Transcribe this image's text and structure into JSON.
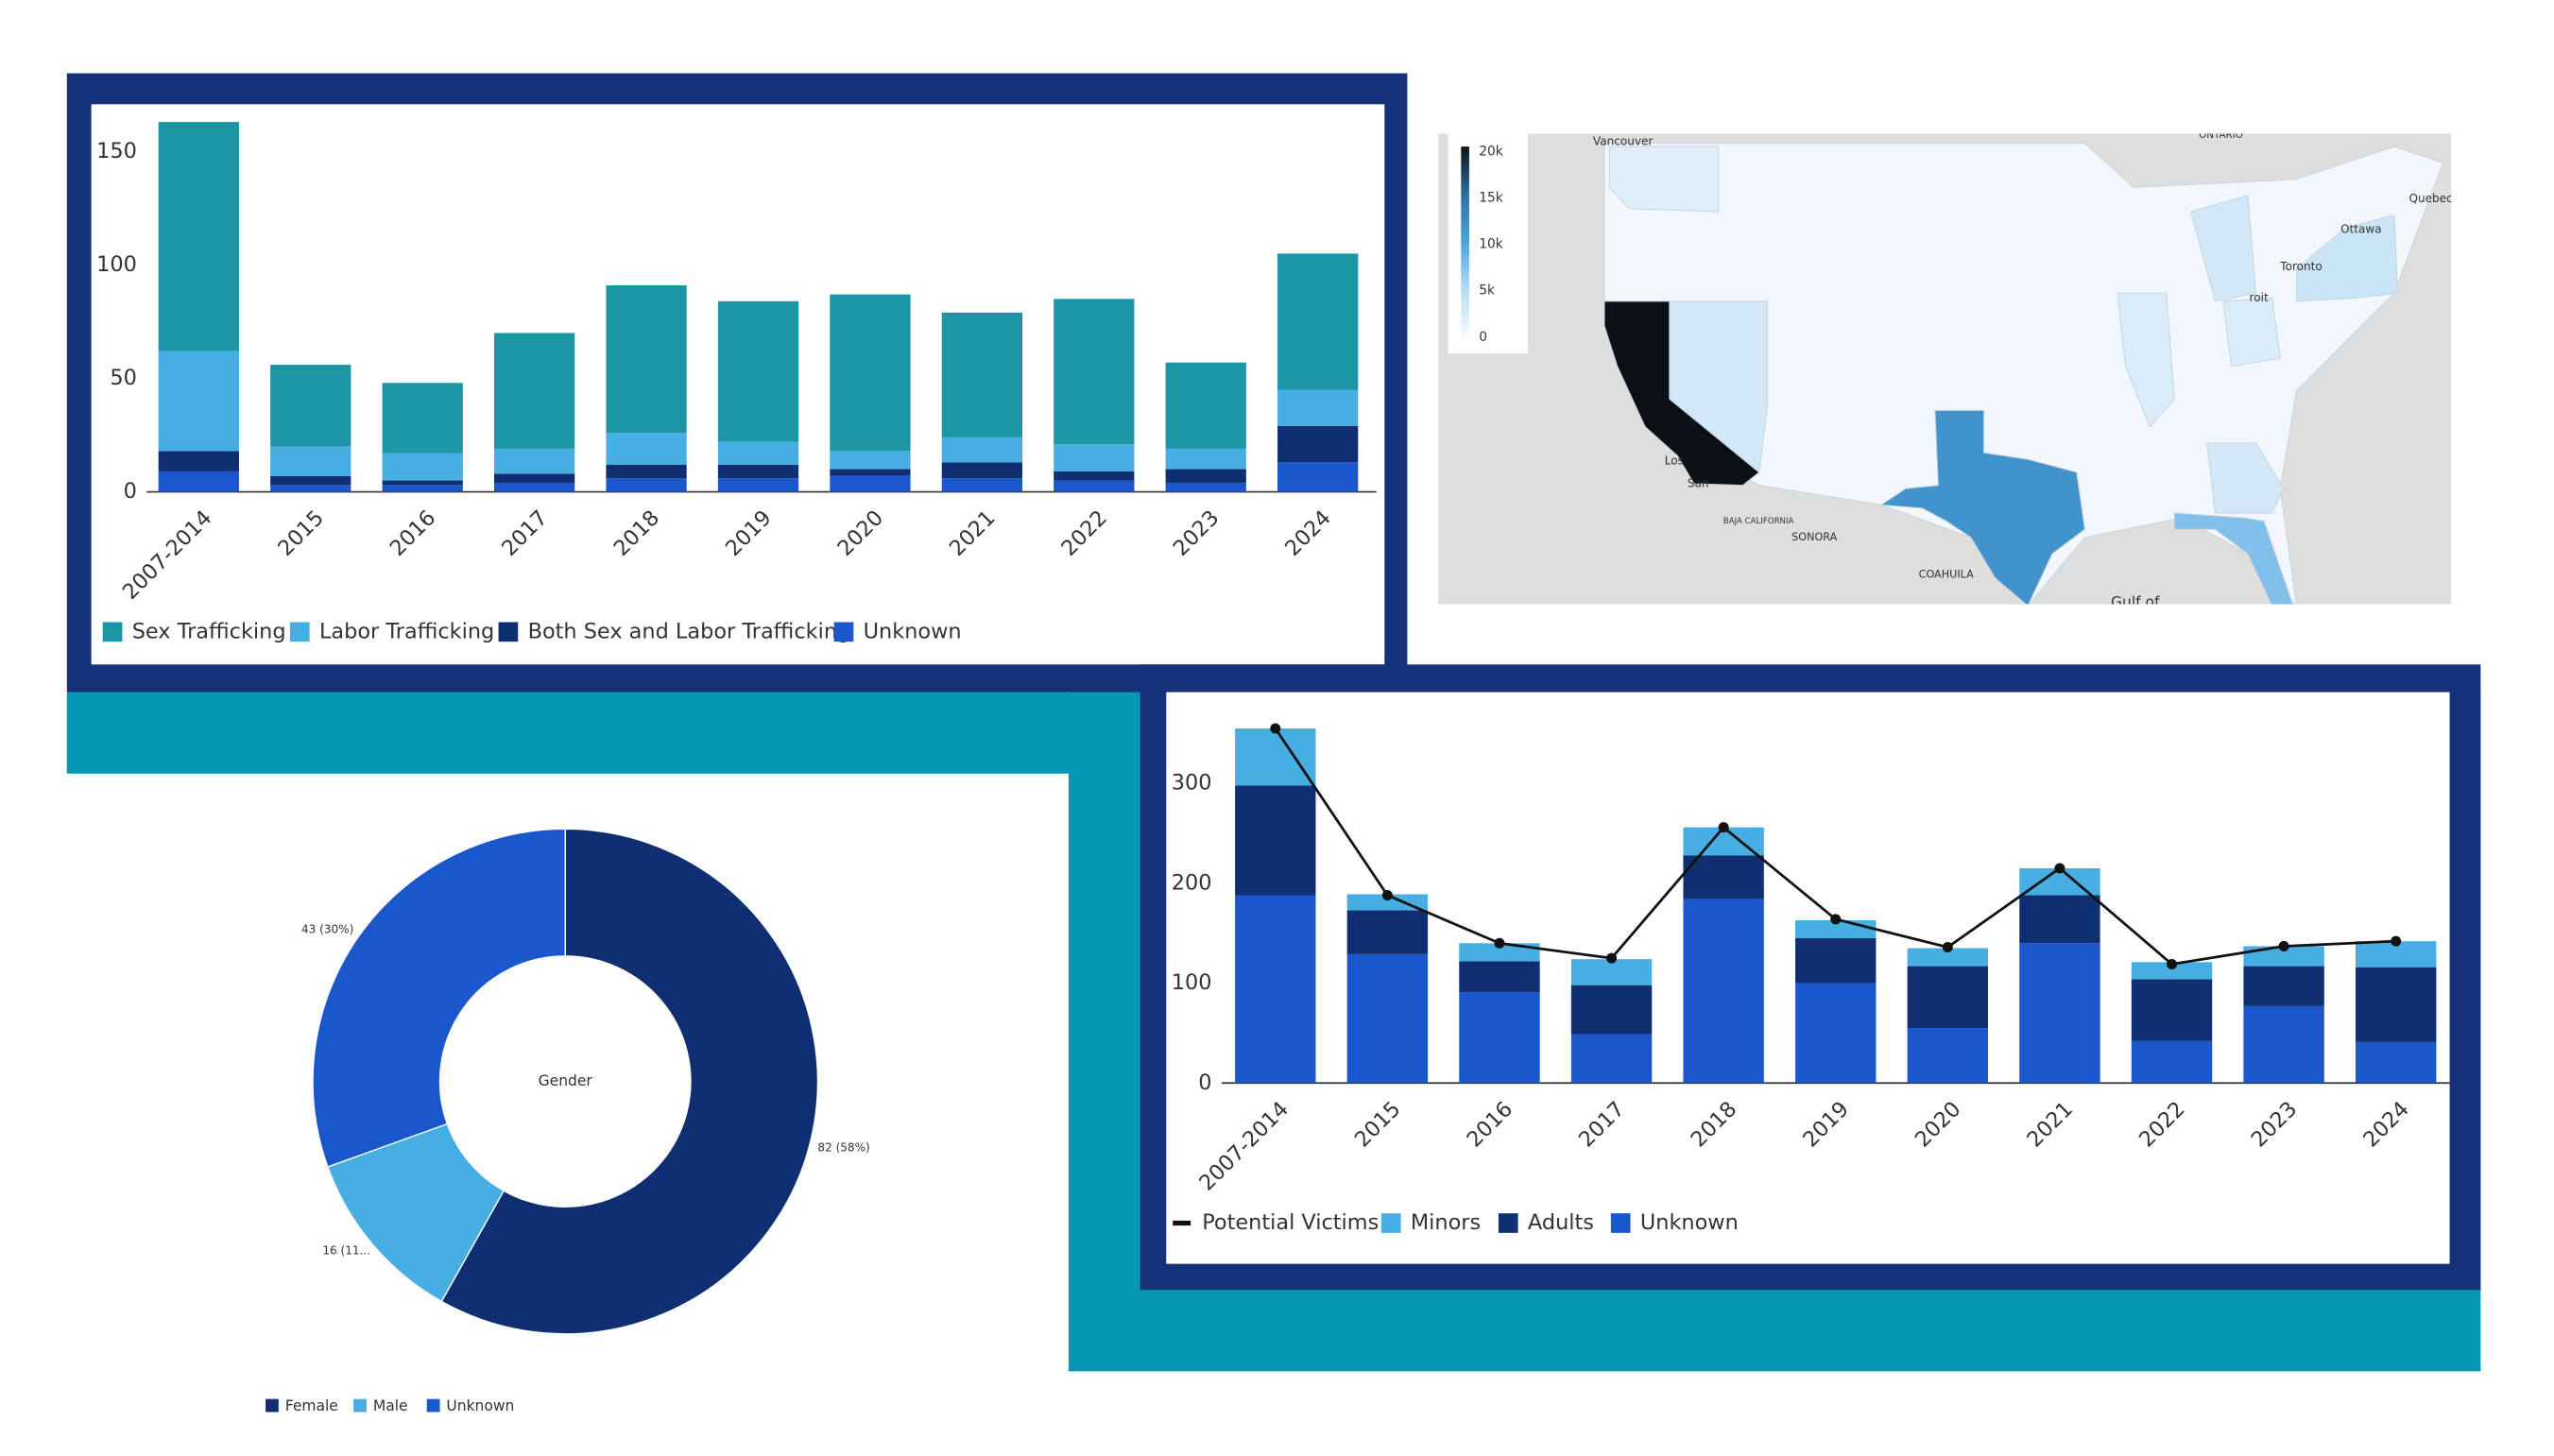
{
  "chart_data": [
    {
      "type": "bar",
      "stacked": true,
      "categories": [
        "2007-2014",
        "2015",
        "2016",
        "2017",
        "2018",
        "2019",
        "2020",
        "2021",
        "2022",
        "2023",
        "2024"
      ],
      "series": [
        {
          "name": "Sex Trafficking",
          "color": "#1a96a4",
          "values": [
            101,
            36,
            31,
            51,
            65,
            62,
            69,
            55,
            64,
            38,
            60
          ]
        },
        {
          "name": "Labor Trafficking",
          "color": "#47aee3",
          "values": [
            44,
            13,
            12,
            11,
            14,
            10,
            8,
            11,
            12,
            9,
            16
          ]
        },
        {
          "name": "Both Sex and Labor Trafficking",
          "color": "#102f73",
          "values": [
            9,
            4,
            2,
            4,
            6,
            6,
            3,
            7,
            4,
            6,
            16
          ]
        },
        {
          "name": "Unknown",
          "color": "#1a56cc",
          "values": [
            9,
            3,
            3,
            4,
            6,
            6,
            7,
            6,
            5,
            4,
            13
          ]
        }
      ],
      "ylim": [
        0,
        170
      ],
      "yticks": [
        0,
        50,
        100,
        150
      ],
      "grid": false,
      "legend": "bottom"
    },
    {
      "type": "map",
      "values": [
        20000,
        11500,
        7500,
        3500,
        3000,
        3000,
        3000,
        2500,
        2500,
        2000
      ],
      "clim": [
        0,
        20000
      ],
      "cticks": [
        0,
        {
          "value": 5000,
          "label": "5k"
        },
        {
          "value": 10000,
          "label": "10k"
        },
        {
          "value": 15000,
          "label": "15k"
        },
        {
          "value": 20000,
          "label": "20k"
        }
      ],
      "place_labels": [
        "Vancouver",
        "ONTARIO",
        "Ottawa",
        "Quebec",
        "Toronto",
        "roit",
        "Los",
        "San",
        "BAJA CALIFORNIA",
        "SONORA",
        "COAHUILA",
        "Gulf of"
      ]
    },
    {
      "type": "pie",
      "donut": true,
      "center_label": "Gender",
      "categories": [
        "Female",
        "Male",
        "Unknown"
      ],
      "values": [
        82,
        16,
        43
      ],
      "value_labels": [
        "82 (58%)",
        "16 (11...",
        "43 (30%)"
      ],
      "colors": [
        "#102f73",
        "#47aee3",
        "#1a56cc"
      ],
      "legend": "bottom"
    },
    {
      "type": "bar",
      "stacked": true,
      "categories": [
        "2007-2014",
        "2015",
        "2016",
        "2017",
        "2018",
        "2019",
        "2020",
        "2021",
        "2022",
        "2023",
        "2024"
      ],
      "series": [
        {
          "name": "Potential Victims",
          "type": "line",
          "color": "#111111",
          "values": [
            355,
            188,
            140,
            125,
            256,
            164,
            136,
            215,
            119,
            137,
            142
          ]
        },
        {
          "name": "Minors",
          "color": "#47aee3",
          "values": [
            57,
            16,
            18,
            26,
            28,
            18,
            18,
            27,
            17,
            20,
            26
          ]
        },
        {
          "name": "Adults",
          "color": "#102f73",
          "values": [
            110,
            44,
            31,
            49,
            44,
            45,
            62,
            48,
            62,
            40,
            75
          ]
        },
        {
          "name": "Unknown",
          "color": "#1a56cc",
          "values": [
            188,
            129,
            91,
            49,
            184,
            100,
            55,
            140,
            42,
            77,
            41
          ]
        }
      ],
      "ylim": [
        0,
        380
      ],
      "yticks": [
        0,
        100,
        200,
        300
      ],
      "grid": false,
      "legend": "bottom"
    }
  ]
}
